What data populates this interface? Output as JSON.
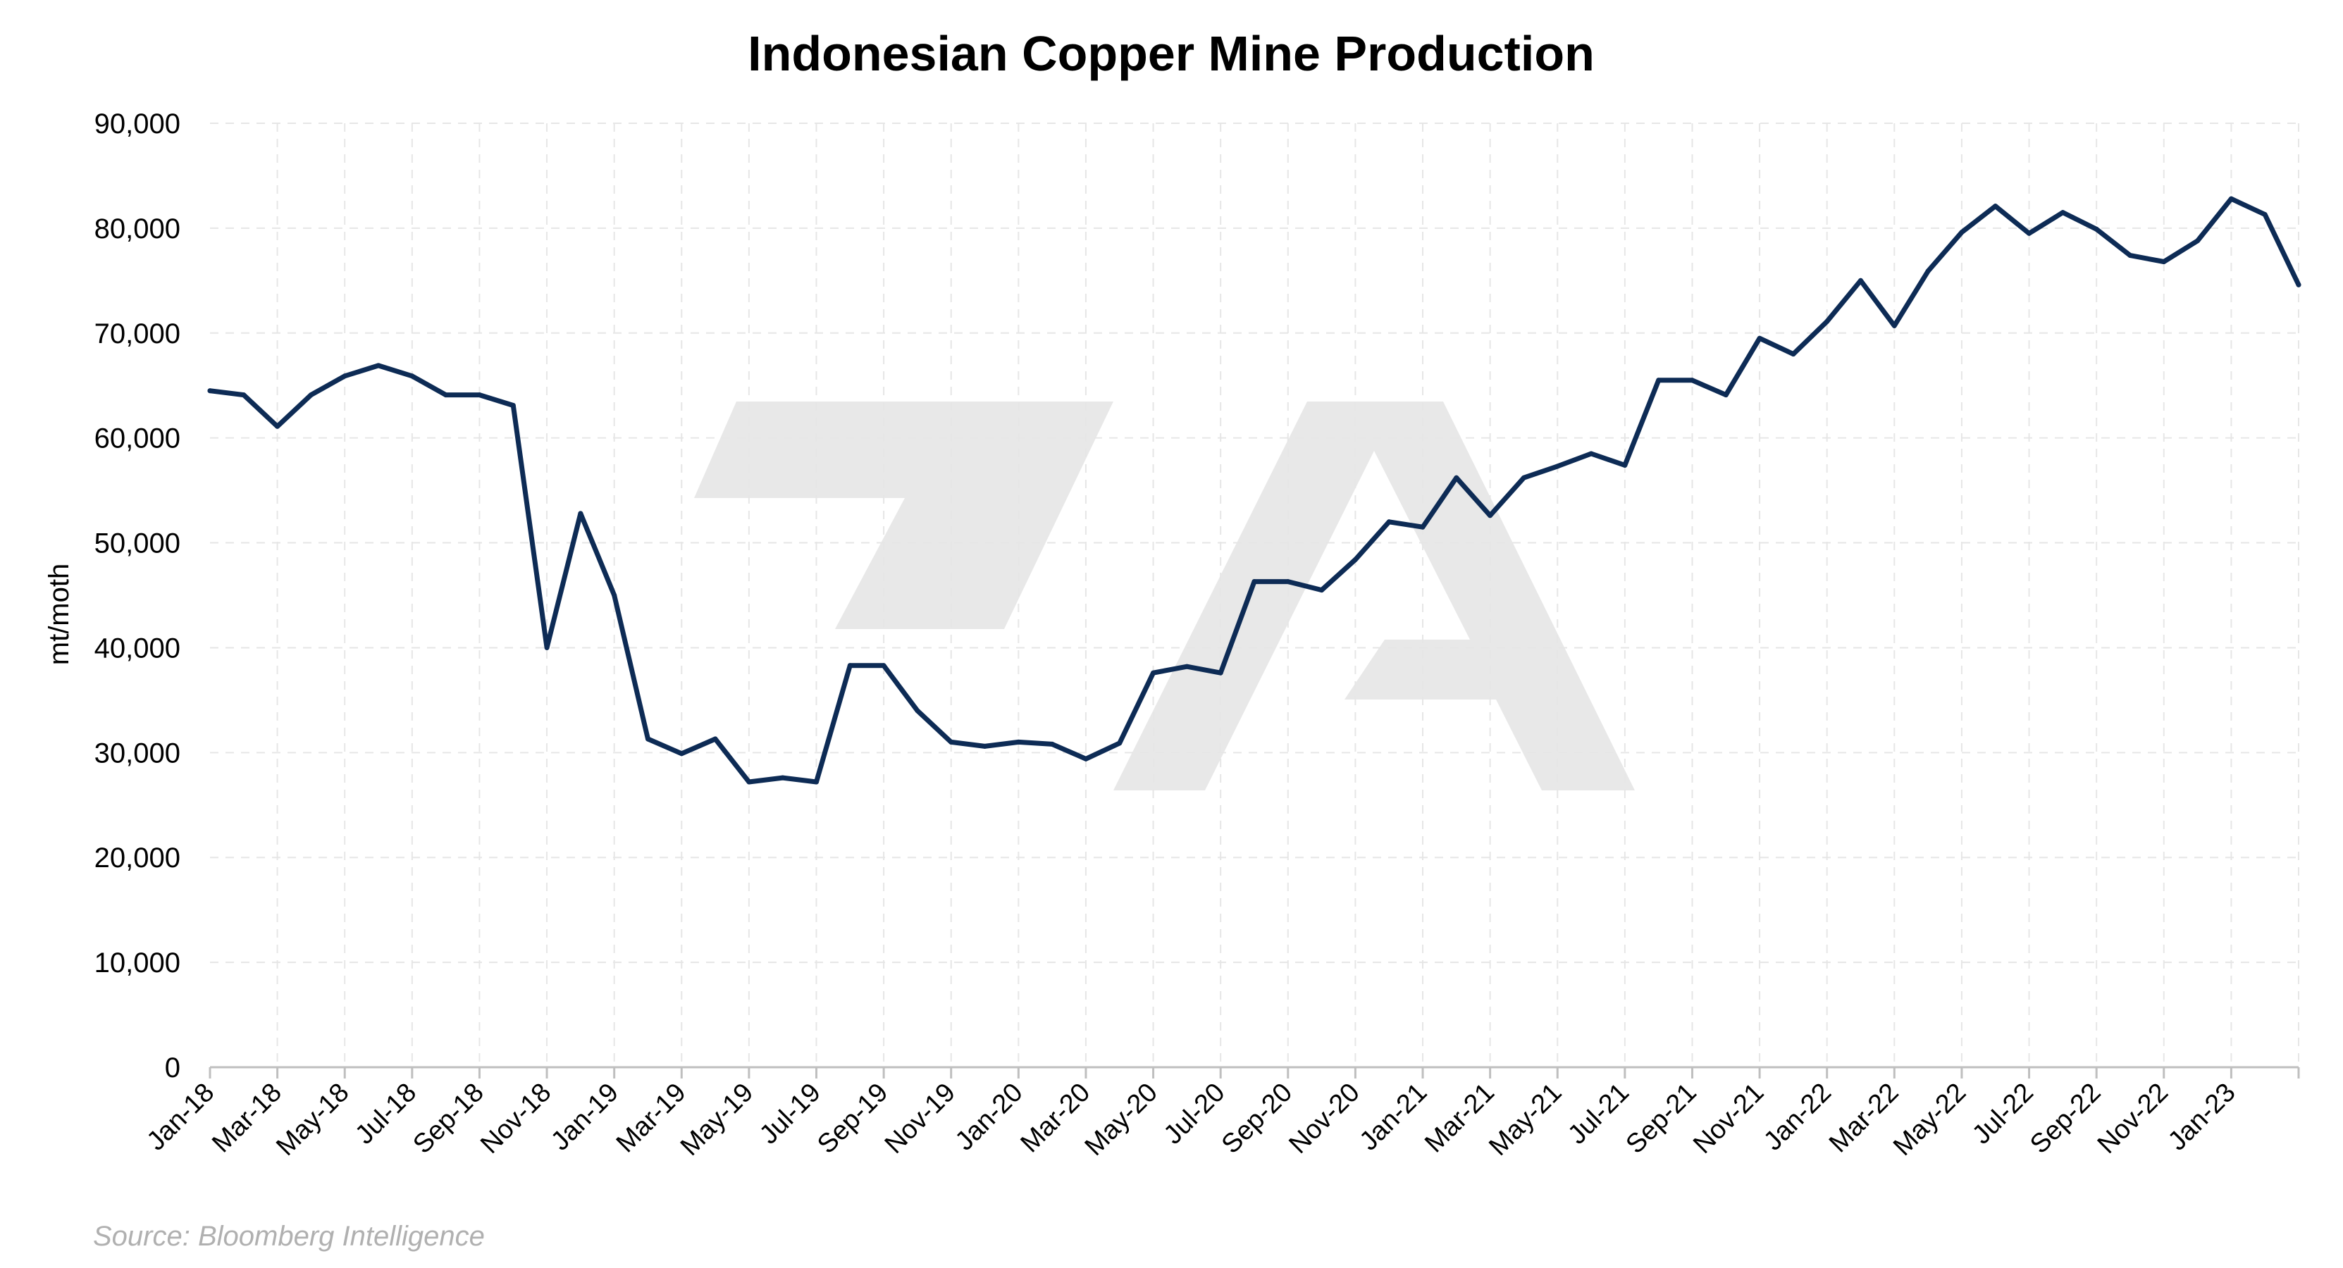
{
  "chart_data": {
    "type": "line",
    "title": "Indonesian Copper Mine Production",
    "xlabel": "",
    "ylabel": "mt/moth",
    "ylim": [
      0,
      90000
    ],
    "yticks": [
      "0",
      "10,000",
      "20,000",
      "30,000",
      "40,000",
      "50,000",
      "60,000",
      "70,000",
      "80,000",
      "90,000"
    ],
    "tick_labels": [
      "Jan-18",
      "Mar-18",
      "May-18",
      "Jul-18",
      "Sep-18",
      "Nov-18",
      "Jan-19",
      "Mar-19",
      "May-19",
      "Jul-19",
      "Sep-19",
      "Nov-19",
      "Jan-20",
      "Mar-20",
      "May-20",
      "Jul-20",
      "Sep-20",
      "Nov-20",
      "Jan-21",
      "Mar-21",
      "May-21",
      "Jul-21",
      "Sep-21",
      "Nov-21",
      "Jan-22",
      "Mar-22",
      "May-22",
      "Jul-22",
      "Sep-22",
      "Nov-22",
      "Jan-23"
    ],
    "x": [
      "Jan-18",
      "Feb-18",
      "Mar-18",
      "Apr-18",
      "May-18",
      "Jun-18",
      "Jul-18",
      "Aug-18",
      "Sep-18",
      "Oct-18",
      "Nov-18",
      "Dec-18",
      "Jan-19",
      "Feb-19",
      "Mar-19",
      "Apr-19",
      "May-19",
      "Jun-19",
      "Jul-19",
      "Aug-19",
      "Sep-19",
      "Oct-19",
      "Nov-19",
      "Dec-19",
      "Jan-20",
      "Feb-20",
      "Mar-20",
      "Apr-20",
      "May-20",
      "Jun-20",
      "Jul-20",
      "Aug-20",
      "Sep-20",
      "Oct-20",
      "Nov-20",
      "Dec-20",
      "Jan-21",
      "Feb-21",
      "Mar-21",
      "Apr-21",
      "May-21",
      "Jun-21",
      "Jul-21",
      "Aug-21",
      "Sep-21",
      "Oct-21",
      "Nov-21",
      "Dec-21",
      "Jan-22",
      "Feb-22",
      "Mar-22",
      "Apr-22",
      "May-22",
      "Jun-22",
      "Jul-22",
      "Aug-22",
      "Sep-22",
      "Oct-22",
      "Nov-22",
      "Dec-22",
      "Jan-23",
      "Feb-23",
      "Mar-23"
    ],
    "series": [
      {
        "color": "#0d2b55",
        "values": [
          64500,
          64100,
          61100,
          64100,
          65900,
          66900,
          65900,
          64100,
          64100,
          63100,
          40000,
          52800,
          45000,
          31300,
          29900,
          31300,
          27200,
          27600,
          27200,
          38300,
          38300,
          34000,
          31000,
          30600,
          31000,
          30800,
          29400,
          30900,
          37600,
          38200,
          37600,
          46300,
          46300,
          45500,
          48400,
          52000,
          51500,
          56200,
          52600,
          56200,
          57300,
          58500,
          57400,
          65500,
          65500,
          64100,
          69500,
          68000,
          71100,
          75000,
          70700,
          75900,
          79600,
          82100,
          79500,
          81500,
          79900,
          77400,
          76800,
          78800,
          82800,
          81300,
          74600
        ]
      }
    ],
    "grid": true,
    "legend": "none",
    "source": "Source: Bloomberg Intelligence"
  }
}
